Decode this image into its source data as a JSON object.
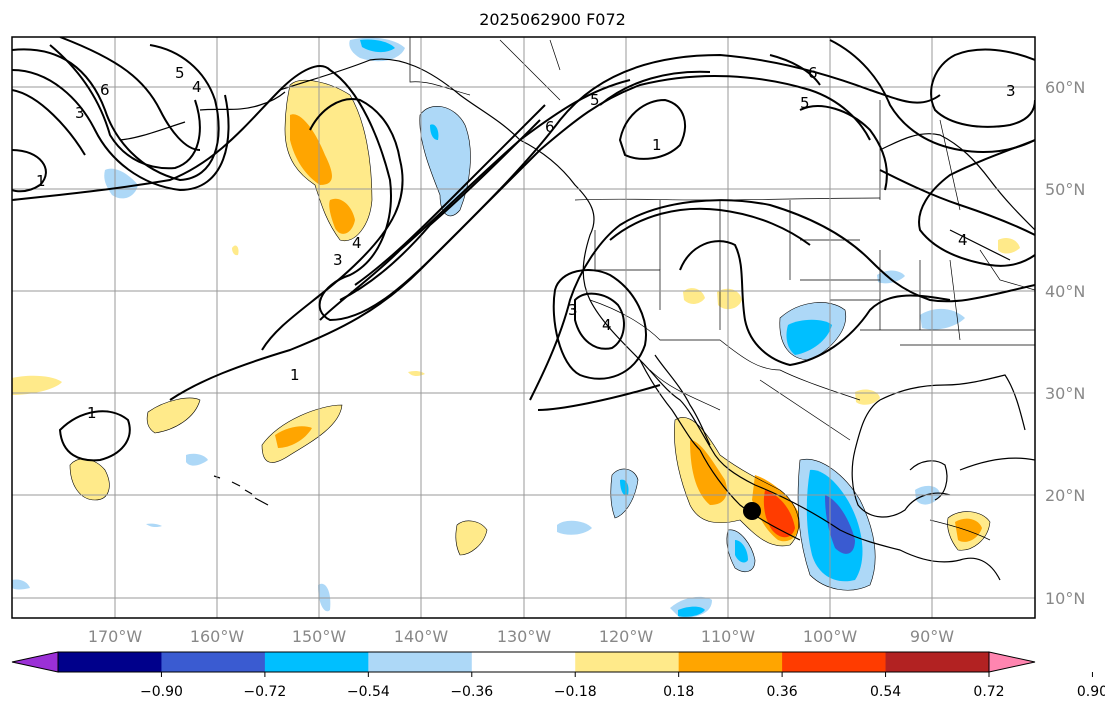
{
  "title": "2025062900 F072",
  "longitude_labels": [
    "170°W",
    "160°W",
    "150°W",
    "140°W",
    "130°W",
    "120°W",
    "110°W",
    "100°W",
    "90°W"
  ],
  "latitude_labels": [
    "60°N",
    "50°N",
    "40°N",
    "30°N",
    "20°N",
    "10°N"
  ],
  "colorbar": {
    "labels": [
      "−0.90",
      "−0.72",
      "−0.54",
      "−0.36",
      "−0.18",
      "0.18",
      "0.36",
      "0.54",
      "0.72",
      "0.90"
    ],
    "colors": [
      "#9b30d6",
      "#00008b",
      "#3a5bd1",
      "#00bfff",
      "#add8f7",
      "#ffffff",
      "#ffea8a",
      "#ffa500",
      "#ff3c00",
      "#b22222",
      "#ff85b0"
    ]
  },
  "contour_labels": [
    "6",
    "3",
    "5",
    "4",
    "1",
    "6",
    "5",
    "1",
    "6",
    "5",
    "4",
    "3",
    "3",
    "4",
    "4",
    "3",
    "1",
    "1"
  ],
  "marker": "storm-center-dot"
}
